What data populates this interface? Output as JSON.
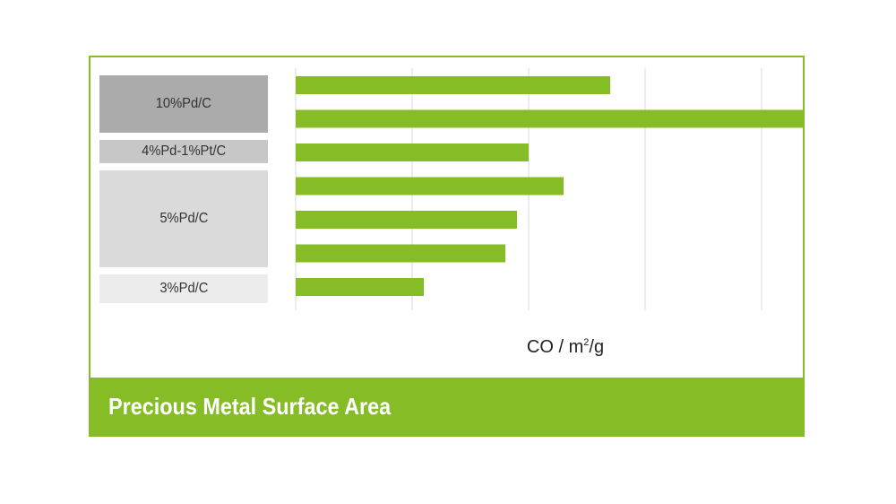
{
  "chart_data": {
    "type": "bar",
    "orientation": "horizontal",
    "title": "Precious Metal Surface Area",
    "xlabel": {
      "base": "CO / m",
      "sup": "2",
      "tail": "/g"
    },
    "groups": [
      {
        "label": "10%Pd/C",
        "color": "#ababab",
        "values": [
          2.7,
          4.4
        ]
      },
      {
        "label": "4%Pd-1%Pt/C",
        "color": "#c7c7c7",
        "values": [
          2.0
        ]
      },
      {
        "label": "5%Pd/C",
        "color": "#dadada",
        "values": [
          2.3,
          1.9,
          1.8
        ]
      },
      {
        "label": "3%Pd/C",
        "color": "#ececec",
        "values": [
          1.1
        ]
      }
    ],
    "xlim": [
      0,
      4.5
    ],
    "grid": true,
    "bar_color": "#86bc25",
    "grid_color": "#d9d9d9"
  }
}
